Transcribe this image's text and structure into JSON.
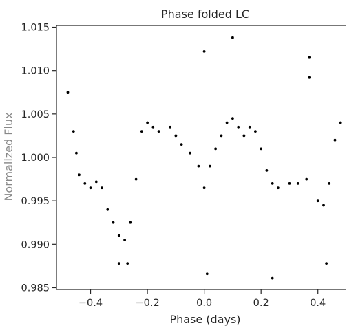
{
  "chart_data": {
    "type": "scatter",
    "title": "Phase folded LC",
    "xlabel": "Phase (days)",
    "ylabel": "Normalized Flux",
    "xlim": [
      -0.52,
      0.5
    ],
    "ylim": [
      0.9848,
      1.0152
    ],
    "xticks": [
      -0.4,
      -0.2,
      0.0,
      0.2,
      0.4
    ],
    "xtick_labels": [
      "−0.4",
      "−0.2",
      "0.0",
      "0.2",
      "0.4"
    ],
    "yticks": [
      0.985,
      0.99,
      0.995,
      1.0,
      1.005,
      1.01,
      1.015
    ],
    "ytick_labels": [
      "0.985",
      "0.990",
      "0.995",
      "1.000",
      "1.005",
      "1.010",
      "1.015"
    ],
    "grid": false,
    "marker_color": "#000000",
    "series": [
      {
        "values": [
          {
            "x": -0.48,
            "y": 1.0075
          },
          {
            "x": -0.46,
            "y": 1.003
          },
          {
            "x": -0.45,
            "y": 1.0005
          },
          {
            "x": -0.44,
            "y": 0.998
          },
          {
            "x": -0.42,
            "y": 0.997
          },
          {
            "x": -0.4,
            "y": 0.9965
          },
          {
            "x": -0.38,
            "y": 0.9972
          },
          {
            "x": -0.36,
            "y": 0.9965
          },
          {
            "x": -0.34,
            "y": 0.994
          },
          {
            "x": -0.32,
            "y": 0.9925
          },
          {
            "x": -0.3,
            "y": 0.991
          },
          {
            "x": -0.28,
            "y": 0.9905
          },
          {
            "x": -0.26,
            "y": 0.9925
          },
          {
            "x": -0.24,
            "y": 0.9975
          },
          {
            "x": -0.22,
            "y": 1.003
          },
          {
            "x": -0.2,
            "y": 1.004
          },
          {
            "x": -0.18,
            "y": 1.0035
          },
          {
            "x": -0.16,
            "y": 1.003
          },
          {
            "x": -0.12,
            "y": 1.0035
          },
          {
            "x": -0.1,
            "y": 1.0025
          },
          {
            "x": -0.08,
            "y": 1.0015
          },
          {
            "x": -0.05,
            "y": 1.0005
          },
          {
            "x": -0.02,
            "y": 0.999
          },
          {
            "x": 0.0,
            "y": 0.9965
          },
          {
            "x": 0.02,
            "y": 0.999
          },
          {
            "x": 0.04,
            "y": 1.001
          },
          {
            "x": 0.06,
            "y": 1.0025
          },
          {
            "x": 0.08,
            "y": 1.004
          },
          {
            "x": 0.1,
            "y": 1.0045
          },
          {
            "x": 0.12,
            "y": 1.0035
          },
          {
            "x": 0.14,
            "y": 1.0025
          },
          {
            "x": 0.16,
            "y": 1.0035
          },
          {
            "x": 0.18,
            "y": 1.003
          },
          {
            "x": 0.2,
            "y": 1.001
          },
          {
            "x": 0.22,
            "y": 0.9985
          },
          {
            "x": 0.24,
            "y": 0.997
          },
          {
            "x": 0.26,
            "y": 0.9965
          },
          {
            "x": 0.3,
            "y": 0.997
          },
          {
            "x": 0.33,
            "y": 0.997
          },
          {
            "x": 0.36,
            "y": 0.9975
          },
          {
            "x": 0.4,
            "y": 0.995
          },
          {
            "x": 0.42,
            "y": 0.9945
          },
          {
            "x": 0.44,
            "y": 0.997
          },
          {
            "x": 0.46,
            "y": 1.002
          },
          {
            "x": 0.48,
            "y": 1.004
          },
          {
            "x": -0.3,
            "y": 0.9878
          },
          {
            "x": 0.1,
            "y": 1.0138
          },
          {
            "x": 0.0,
            "y": 1.0122
          },
          {
            "x": 0.01,
            "y": 0.9866
          },
          {
            "x": 0.24,
            "y": 0.9861
          },
          {
            "x": -0.27,
            "y": 0.9878
          },
          {
            "x": 0.43,
            "y": 0.9878
          },
          {
            "x": 0.37,
            "y": 1.0115
          },
          {
            "x": 0.37,
            "y": 1.0092
          }
        ]
      }
    ]
  }
}
